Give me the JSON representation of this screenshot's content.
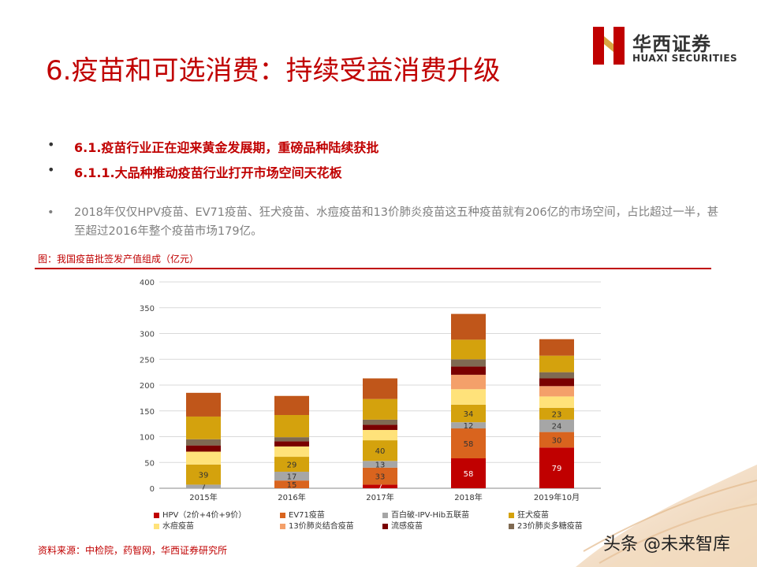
{
  "title": "6.疫苗和可选消费：持续受益消费升级",
  "logo": {
    "cn": "华西证券",
    "en": "HUAXI SECURITIES"
  },
  "bullets": [
    "6.1.疫苗行业正在迎来黄金发展期，重磅品种陆续获批",
    "6.1.1.大品种推动疫苗行业打开市场空间天花板"
  ],
  "paragraph": "2018年仅仅HPV疫苗、EV71疫苗、狂犬疫苗、水痘疫苗和13价肺炎疫苗这五种疫苗就有206亿的市场空间，占比超过一半，甚至超过2016年整个疫苗市场179亿。",
  "figure_title": "图：我国疫苗批签发产值组成（亿元）",
  "source": "资料来源：中检院，药智网，华西证券研究所",
  "watermark": "头条 @未来智库",
  "chart_data": {
    "type": "bar",
    "stacked": true,
    "categories": [
      "2015年",
      "2016年",
      "2017年",
      "2018年",
      "2019年10月"
    ],
    "ylim": [
      0,
      400
    ],
    "yticks": [
      0,
      50,
      100,
      150,
      200,
      250,
      300,
      350,
      400
    ],
    "grid": true,
    "legend_position": "bottom",
    "series": [
      {
        "name": "HPV（2价+4价+9价）",
        "color": "#c00000",
        "values": [
          0,
          0,
          7,
          58,
          79
        ],
        "labels": [
          "",
          "",
          "7",
          "58",
          "79"
        ]
      },
      {
        "name": "EV71疫苗",
        "color": "#d9641e",
        "values": [
          0,
          15,
          33,
          58,
          30
        ],
        "labels": [
          "",
          "15",
          "33",
          "58",
          "30"
        ]
      },
      {
        "name": "百白破-IPV-Hib五联苗",
        "color": "#a6a6a6",
        "values": [
          7,
          17,
          13,
          12,
          24
        ],
        "labels": [
          "7",
          "17",
          "13",
          "12",
          "24"
        ]
      },
      {
        "name": "狂犬疫苗",
        "color": "#d4a20d",
        "values": [
          39,
          29,
          40,
          34,
          23
        ],
        "labels": [
          "39",
          "29",
          "40",
          "34",
          "23"
        ]
      },
      {
        "name": "水痘疫苗",
        "color": "#ffe27a",
        "values": [
          25,
          20,
          20,
          30,
          22
        ],
        "labels": [
          "",
          "",
          "",
          "",
          ""
        ]
      },
      {
        "name": "13价肺炎结合疫苗",
        "color": "#f4a06a",
        "values": [
          0,
          0,
          0,
          28,
          20
        ],
        "labels": [
          "",
          "",
          "",
          "",
          ""
        ]
      },
      {
        "name": "流感疫苗",
        "color": "#7a0000",
        "values": [
          12,
          10,
          10,
          16,
          15
        ],
        "labels": [
          "",
          "",
          "",
          "",
          ""
        ]
      },
      {
        "name": "23价肺炎多糖疫苗",
        "color": "#7f6a52",
        "values": [
          12,
          8,
          10,
          14,
          12
        ],
        "labels": [
          "",
          "",
          "",
          "",
          ""
        ]
      },
      {
        "name": "",
        "color": "#d4a20d",
        "values": [
          44,
          43,
          40,
          38,
          32
        ],
        "labels": [
          "",
          "",
          "",
          "",
          ""
        ]
      },
      {
        "name": "",
        "color": "#c0561a",
        "values": [
          46,
          37,
          40,
          50,
          32
        ],
        "labels": [
          "",
          "",
          "",
          "",
          ""
        ]
      }
    ],
    "legend": [
      "HPV（2价+4价+9价）",
      "EV71疫苗",
      "百白破-IPV-Hib五联苗",
      "狂犬疫苗",
      "水痘疫苗",
      "13价肺炎结合疫苗",
      "流感疫苗",
      "23价肺炎多糖疫苗"
    ]
  }
}
